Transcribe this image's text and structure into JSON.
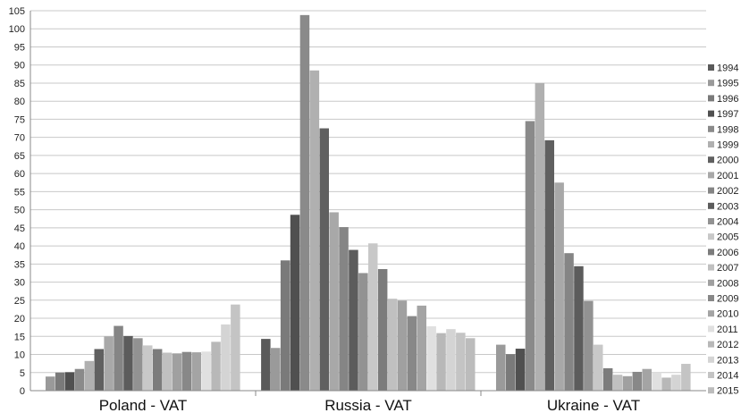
{
  "chart_data": {
    "type": "bar",
    "title": "",
    "xlabel": "",
    "ylabel": "",
    "ylim": [
      0,
      105
    ],
    "y_ticks": [
      0,
      5,
      10,
      15,
      20,
      25,
      30,
      35,
      40,
      45,
      50,
      55,
      60,
      65,
      70,
      75,
      80,
      85,
      90,
      95,
      100,
      105
    ],
    "grid": true,
    "legend_position": "right",
    "categories": [
      "Poland - VAT",
      "Russia - VAT",
      "Ukraine - VAT"
    ],
    "series": [
      {
        "name": "1994",
        "color": "#5a5a5a",
        "values": [
          null,
          14.3,
          null
        ]
      },
      {
        "name": "1995",
        "color": "#9a9a9a",
        "values": [
          3.9,
          11.8,
          12.7
        ]
      },
      {
        "name": "1996",
        "color": "#7a7a7a",
        "values": [
          5.0,
          36.0,
          10.1
        ]
      },
      {
        "name": "1997",
        "color": "#505050",
        "values": [
          5.1,
          48.6,
          11.6
        ]
      },
      {
        "name": "1998",
        "color": "#8a8a8a",
        "values": [
          6.0,
          103.8,
          74.5
        ]
      },
      {
        "name": "1999",
        "color": "#b0b0b0",
        "values": [
          8.2,
          88.5,
          85.0
        ]
      },
      {
        "name": "2000",
        "color": "#606060",
        "values": [
          11.5,
          72.5,
          69.2
        ]
      },
      {
        "name": "2001",
        "color": "#a8a8a8",
        "values": [
          15.0,
          49.3,
          57.5
        ]
      },
      {
        "name": "2002",
        "color": "#858585",
        "values": [
          17.9,
          45.2,
          38.0
        ]
      },
      {
        "name": "2003",
        "color": "#5c5c5c",
        "values": [
          15.1,
          38.9,
          34.4
        ]
      },
      {
        "name": "2004",
        "color": "#929292",
        "values": [
          14.5,
          32.5,
          24.8
        ]
      },
      {
        "name": "2005",
        "color": "#c8c8c8",
        "values": [
          12.5,
          40.7,
          12.7
        ]
      },
      {
        "name": "2006",
        "color": "#7c7c7c",
        "values": [
          11.5,
          33.6,
          6.2
        ]
      },
      {
        "name": "2007",
        "color": "#c0c0c0",
        "values": [
          10.5,
          25.4,
          4.4
        ]
      },
      {
        "name": "2008",
        "color": "#a0a0a0",
        "values": [
          10.3,
          24.9,
          4.0
        ]
      },
      {
        "name": "2009",
        "color": "#888888",
        "values": [
          10.7,
          20.6,
          5.2
        ]
      },
      {
        "name": "2010",
        "color": "#a4a4a4",
        "values": [
          10.6,
          23.5,
          6.0
        ]
      },
      {
        "name": "2011",
        "color": "#e0e0e0",
        "values": [
          10.8,
          17.8,
          5.0
        ]
      },
      {
        "name": "2012",
        "color": "#b8b8b8",
        "values": [
          13.5,
          15.9,
          3.6
        ]
      },
      {
        "name": "2013",
        "color": "#d4d4d4",
        "values": [
          18.3,
          17.0,
          4.4
        ]
      },
      {
        "name": "2014",
        "color": "#c4c4c4",
        "values": [
          23.8,
          16.0,
          7.4
        ]
      },
      {
        "name": "2015",
        "color": "#bcbcbc",
        "values": [
          null,
          14.5,
          null
        ]
      }
    ]
  }
}
